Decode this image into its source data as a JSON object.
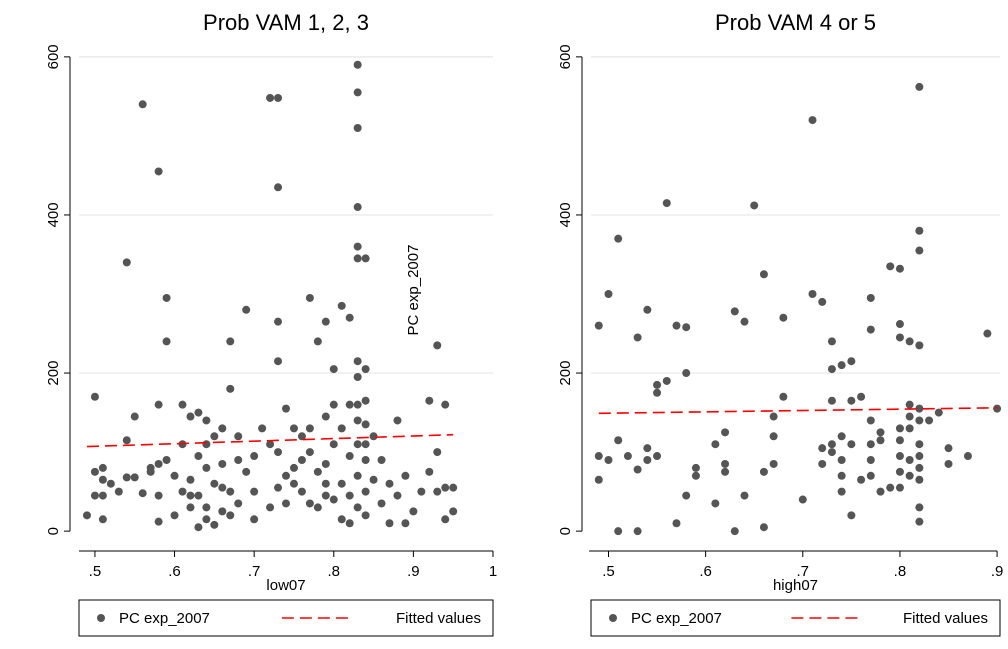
{
  "chart_data": [
    {
      "type": "scatter",
      "title": "Prob VAM 1, 2, 3",
      "xlabel": "low07",
      "ylabel": "",
      "xlim": [
        0.48,
        1.0
      ],
      "ylim": [
        0,
        600
      ],
      "xticks": [
        ".5",
        ".6",
        ".7",
        ".8",
        ".9",
        "1"
      ],
      "xtick_values": [
        0.5,
        0.6,
        0.7,
        0.8,
        0.9,
        1.0
      ],
      "yticks": [
        "0",
        "200",
        "400",
        "600"
      ],
      "ytick_values": [
        0,
        200,
        400,
        600
      ],
      "grid": true,
      "legend_position": "bottom",
      "annotation": "PC exp_2007",
      "series": [
        {
          "name": "PC exp_2007",
          "kind": "points",
          "color": "#555555",
          "points": [
            [
              0.49,
              20
            ],
            [
              0.5,
              170
            ],
            [
              0.5,
              75
            ],
            [
              0.5,
              45
            ],
            [
              0.51,
              65
            ],
            [
              0.51,
              80
            ],
            [
              0.51,
              15
            ],
            [
              0.51,
              45
            ],
            [
              0.52,
              60
            ],
            [
              0.53,
              50
            ],
            [
              0.54,
              340
            ],
            [
              0.54,
              115
            ],
            [
              0.54,
              68
            ],
            [
              0.55,
              68
            ],
            [
              0.55,
              145
            ],
            [
              0.56,
              540
            ],
            [
              0.56,
              48
            ],
            [
              0.57,
              80
            ],
            [
              0.57,
              75
            ],
            [
              0.58,
              455
            ],
            [
              0.58,
              160
            ],
            [
              0.58,
              85
            ],
            [
              0.58,
              45
            ],
            [
              0.58,
              12
            ],
            [
              0.59,
              295
            ],
            [
              0.59,
              240
            ],
            [
              0.59,
              90
            ],
            [
              0.6,
              70
            ],
            [
              0.6,
              20
            ],
            [
              0.61,
              160
            ],
            [
              0.61,
              50
            ],
            [
              0.61,
              110
            ],
            [
              0.62,
              145
            ],
            [
              0.62,
              45
            ],
            [
              0.62,
              30
            ],
            [
              0.62,
              65
            ],
            [
              0.63,
              150
            ],
            [
              0.63,
              95
            ],
            [
              0.63,
              45
            ],
            [
              0.63,
              5
            ],
            [
              0.64,
              140
            ],
            [
              0.64,
              110
            ],
            [
              0.64,
              80
            ],
            [
              0.64,
              30
            ],
            [
              0.64,
              15
            ],
            [
              0.65,
              120
            ],
            [
              0.65,
              60
            ],
            [
              0.65,
              8
            ],
            [
              0.66,
              130
            ],
            [
              0.66,
              85
            ],
            [
              0.66,
              55
            ],
            [
              0.66,
              25
            ],
            [
              0.67,
              180
            ],
            [
              0.67,
              240
            ],
            [
              0.67,
              50
            ],
            [
              0.67,
              20
            ],
            [
              0.68,
              120
            ],
            [
              0.68,
              90
            ],
            [
              0.68,
              35
            ],
            [
              0.69,
              280
            ],
            [
              0.69,
              75
            ],
            [
              0.7,
              95
            ],
            [
              0.7,
              50
            ],
            [
              0.7,
              15
            ],
            [
              0.71,
              130
            ],
            [
              0.72,
              548
            ],
            [
              0.72,
              110
            ],
            [
              0.72,
              30
            ],
            [
              0.73,
              548
            ],
            [
              0.73,
              435
            ],
            [
              0.73,
              265
            ],
            [
              0.73,
              215
            ],
            [
              0.73,
              100
            ],
            [
              0.73,
              55
            ],
            [
              0.74,
              155
            ],
            [
              0.74,
              70
            ],
            [
              0.74,
              35
            ],
            [
              0.75,
              130
            ],
            [
              0.75,
              80
            ],
            [
              0.75,
              60
            ],
            [
              0.76,
              120
            ],
            [
              0.76,
              90
            ],
            [
              0.76,
              50
            ],
            [
              0.77,
              295
            ],
            [
              0.77,
              130
            ],
            [
              0.77,
              100
            ],
            [
              0.77,
              35
            ],
            [
              0.78,
              240
            ],
            [
              0.78,
              75
            ],
            [
              0.78,
              30
            ],
            [
              0.79,
              265
            ],
            [
              0.79,
              145
            ],
            [
              0.79,
              85
            ],
            [
              0.79,
              60
            ],
            [
              0.79,
              45
            ],
            [
              0.8,
              205
            ],
            [
              0.8,
              160
            ],
            [
              0.8,
              110
            ],
            [
              0.8,
              40
            ],
            [
              0.81,
              285
            ],
            [
              0.81,
              130
            ],
            [
              0.81,
              60
            ],
            [
              0.81,
              15
            ],
            [
              0.82,
              270
            ],
            [
              0.82,
              160
            ],
            [
              0.82,
              95
            ],
            [
              0.82,
              45
            ],
            [
              0.82,
              10
            ],
            [
              0.83,
              590
            ],
            [
              0.83,
              555
            ],
            [
              0.83,
              510
            ],
            [
              0.83,
              410
            ],
            [
              0.83,
              360
            ],
            [
              0.83,
              345
            ],
            [
              0.83,
              215
            ],
            [
              0.83,
              195
            ],
            [
              0.83,
              160
            ],
            [
              0.83,
              140
            ],
            [
              0.83,
              110
            ],
            [
              0.83,
              70
            ],
            [
              0.83,
              30
            ],
            [
              0.84,
              345
            ],
            [
              0.84,
              205
            ],
            [
              0.84,
              165
            ],
            [
              0.84,
              135
            ],
            [
              0.84,
              110
            ],
            [
              0.84,
              90
            ],
            [
              0.84,
              50
            ],
            [
              0.84,
              20
            ],
            [
              0.85,
              120
            ],
            [
              0.85,
              65
            ],
            [
              0.86,
              90
            ],
            [
              0.86,
              35
            ],
            [
              0.87,
              60
            ],
            [
              0.87,
              10
            ],
            [
              0.88,
              140
            ],
            [
              0.88,
              45
            ],
            [
              0.89,
              70
            ],
            [
              0.89,
              10
            ],
            [
              0.9,
              25
            ],
            [
              0.91,
              50
            ],
            [
              0.92,
              165
            ],
            [
              0.92,
              75
            ],
            [
              0.93,
              235
            ],
            [
              0.93,
              100
            ],
            [
              0.93,
              50
            ],
            [
              0.94,
              160
            ],
            [
              0.94,
              55
            ],
            [
              0.94,
              15
            ],
            [
              0.95,
              55
            ],
            [
              0.95,
              25
            ]
          ]
        },
        {
          "name": "Fitted values",
          "kind": "line",
          "dashed": true,
          "color": "#ff0000",
          "points": [
            [
              0.49,
              107
            ],
            [
              0.95,
              122
            ]
          ]
        }
      ]
    },
    {
      "type": "scatter",
      "title": "Prob VAM 4 or 5",
      "xlabel": "high07",
      "ylabel": "",
      "xlim": [
        0.48,
        0.9
      ],
      "ylim": [
        0,
        600
      ],
      "xticks": [
        ".5",
        ".6",
        ".7",
        ".8",
        ".9"
      ],
      "xtick_values": [
        0.5,
        0.6,
        0.7,
        0.8,
        0.9
      ],
      "yticks": [
        "0",
        "200",
        "400",
        "600"
      ],
      "ytick_values": [
        0,
        200,
        400,
        600
      ],
      "grid": true,
      "legend_position": "bottom",
      "series": [
        {
          "name": "PC exp_2007",
          "kind": "points",
          "color": "#555555",
          "points": [
            [
              0.49,
              260
            ],
            [
              0.49,
              95
            ],
            [
              0.49,
              65
            ],
            [
              0.5,
              300
            ],
            [
              0.5,
              90
            ],
            [
              0.51,
              370
            ],
            [
              0.51,
              115
            ],
            [
              0.51,
              0
            ],
            [
              0.52,
              95
            ],
            [
              0.53,
              245
            ],
            [
              0.53,
              78
            ],
            [
              0.53,
              0
            ],
            [
              0.54,
              280
            ],
            [
              0.54,
              105
            ],
            [
              0.54,
              90
            ],
            [
              0.55,
              185
            ],
            [
              0.55,
              95
            ],
            [
              0.55,
              175
            ],
            [
              0.56,
              190
            ],
            [
              0.56,
              415
            ],
            [
              0.57,
              260
            ],
            [
              0.57,
              10
            ],
            [
              0.58,
              258
            ],
            [
              0.58,
              200
            ],
            [
              0.58,
              45
            ],
            [
              0.59,
              80
            ],
            [
              0.59,
              70
            ],
            [
              0.61,
              110
            ],
            [
              0.61,
              35
            ],
            [
              0.62,
              125
            ],
            [
              0.62,
              85
            ],
            [
              0.62,
              75
            ],
            [
              0.63,
              278
            ],
            [
              0.63,
              0
            ],
            [
              0.64,
              265
            ],
            [
              0.64,
              45
            ],
            [
              0.65,
              412
            ],
            [
              0.66,
              325
            ],
            [
              0.66,
              75
            ],
            [
              0.66,
              5
            ],
            [
              0.67,
              145
            ],
            [
              0.67,
              120
            ],
            [
              0.67,
              85
            ],
            [
              0.68,
              270
            ],
            [
              0.68,
              170
            ],
            [
              0.7,
              40
            ],
            [
              0.71,
              520
            ],
            [
              0.71,
              300
            ],
            [
              0.72,
              290
            ],
            [
              0.72,
              105
            ],
            [
              0.72,
              85
            ],
            [
              0.73,
              240
            ],
            [
              0.73,
              205
            ],
            [
              0.73,
              165
            ],
            [
              0.73,
              110
            ],
            [
              0.73,
              100
            ],
            [
              0.74,
              210
            ],
            [
              0.74,
              120
            ],
            [
              0.74,
              90
            ],
            [
              0.74,
              70
            ],
            [
              0.74,
              50
            ],
            [
              0.75,
              215
            ],
            [
              0.75,
              165
            ],
            [
              0.75,
              110
            ],
            [
              0.75,
              20
            ],
            [
              0.76,
              170
            ],
            [
              0.76,
              65
            ],
            [
              0.77,
              295
            ],
            [
              0.77,
              255
            ],
            [
              0.77,
              140
            ],
            [
              0.77,
              110
            ],
            [
              0.77,
              90
            ],
            [
              0.77,
              70
            ],
            [
              0.78,
              125
            ],
            [
              0.78,
              115
            ],
            [
              0.78,
              50
            ],
            [
              0.79,
              335
            ],
            [
              0.79,
              55
            ],
            [
              0.8,
              332
            ],
            [
              0.8,
              262
            ],
            [
              0.8,
              245
            ],
            [
              0.8,
              130
            ],
            [
              0.8,
              115
            ],
            [
              0.8,
              95
            ],
            [
              0.8,
              75
            ],
            [
              0.8,
              55
            ],
            [
              0.81,
              240
            ],
            [
              0.81,
              160
            ],
            [
              0.81,
              145
            ],
            [
              0.81,
              130
            ],
            [
              0.81,
              90
            ],
            [
              0.81,
              70
            ],
            [
              0.82,
              562
            ],
            [
              0.82,
              380
            ],
            [
              0.82,
              355
            ],
            [
              0.82,
              235
            ],
            [
              0.82,
              155
            ],
            [
              0.82,
              140
            ],
            [
              0.82,
              110
            ],
            [
              0.82,
              95
            ],
            [
              0.82,
              80
            ],
            [
              0.82,
              65
            ],
            [
              0.82,
              30
            ],
            [
              0.82,
              12
            ],
            [
              0.83,
              140
            ],
            [
              0.84,
              150
            ],
            [
              0.85,
              105
            ],
            [
              0.85,
              85
            ],
            [
              0.87,
              95
            ],
            [
              0.89,
              250
            ],
            [
              0.9,
              155
            ]
          ]
        },
        {
          "name": "Fitted values",
          "kind": "line",
          "dashed": true,
          "color": "#ff0000",
          "points": [
            [
              0.49,
              149
            ],
            [
              0.9,
              156
            ]
          ]
        }
      ]
    }
  ],
  "legend": {
    "scatter_label": "PC exp_2007",
    "line_label": "Fitted values"
  }
}
